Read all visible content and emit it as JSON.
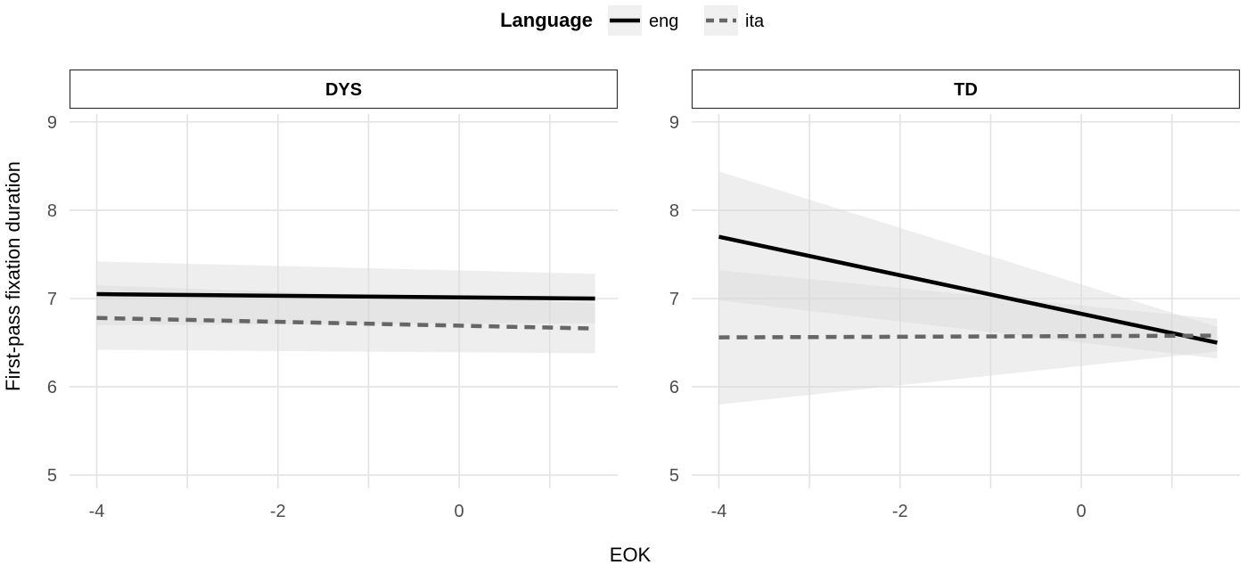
{
  "chart_data": {
    "type": "line",
    "xlabel": "EOK",
    "ylabel": "First-pass fixation duration",
    "xlim": [
      -4.3,
      1.75
    ],
    "ylim": [
      4.85,
      9.15
    ],
    "x_ticks": [
      -4,
      -2,
      0
    ],
    "x_tick_labels": [
      "-4",
      "-2",
      "0"
    ],
    "x_minor_ticks": [
      -3,
      -1,
      1
    ],
    "y_ticks": [
      5,
      6,
      7,
      8,
      9
    ],
    "y_tick_labels": [
      "5",
      "6",
      "7",
      "8",
      "9"
    ],
    "grid": true,
    "legend": {
      "title": "Language",
      "position": "top",
      "entries": [
        {
          "label": "eng",
          "color": "#000000",
          "linetype": "solid"
        },
        {
          "label": "ita",
          "color": "#666666",
          "linetype": "dashed"
        }
      ]
    },
    "panels": [
      {
        "strip": "DYS",
        "series": [
          {
            "name": "eng",
            "x": [
              -4,
              1.5
            ],
            "y": [
              7.05,
              7.0
            ],
            "ci_lower": [
              6.7,
              6.72
            ],
            "ci_upper": [
              7.42,
              7.28
            ]
          },
          {
            "name": "ita",
            "x": [
              -4,
              1.5
            ],
            "y": [
              6.78,
              6.66
            ],
            "ci_lower": [
              6.42,
              6.38
            ],
            "ci_upper": [
              7.15,
              6.95
            ]
          }
        ]
      },
      {
        "strip": "TD",
        "series": [
          {
            "name": "eng",
            "x": [
              -4,
              1.5
            ],
            "y": [
              7.7,
              6.5
            ],
            "ci_lower": [
              6.98,
              6.32
            ],
            "ci_upper": [
              8.44,
              6.68
            ]
          },
          {
            "name": "ita",
            "x": [
              -4,
              1.5
            ],
            "y": [
              6.56,
              6.58
            ],
            "ci_lower": [
              5.8,
              6.4
            ],
            "ci_upper": [
              7.32,
              6.77
            ]
          }
        ]
      }
    ],
    "colors": {
      "eng": "#000000",
      "ita": "#666666",
      "ribbon": "#d9d9d9",
      "grid": "#e3e3e3",
      "tick_text": "#4d4d4d"
    }
  }
}
